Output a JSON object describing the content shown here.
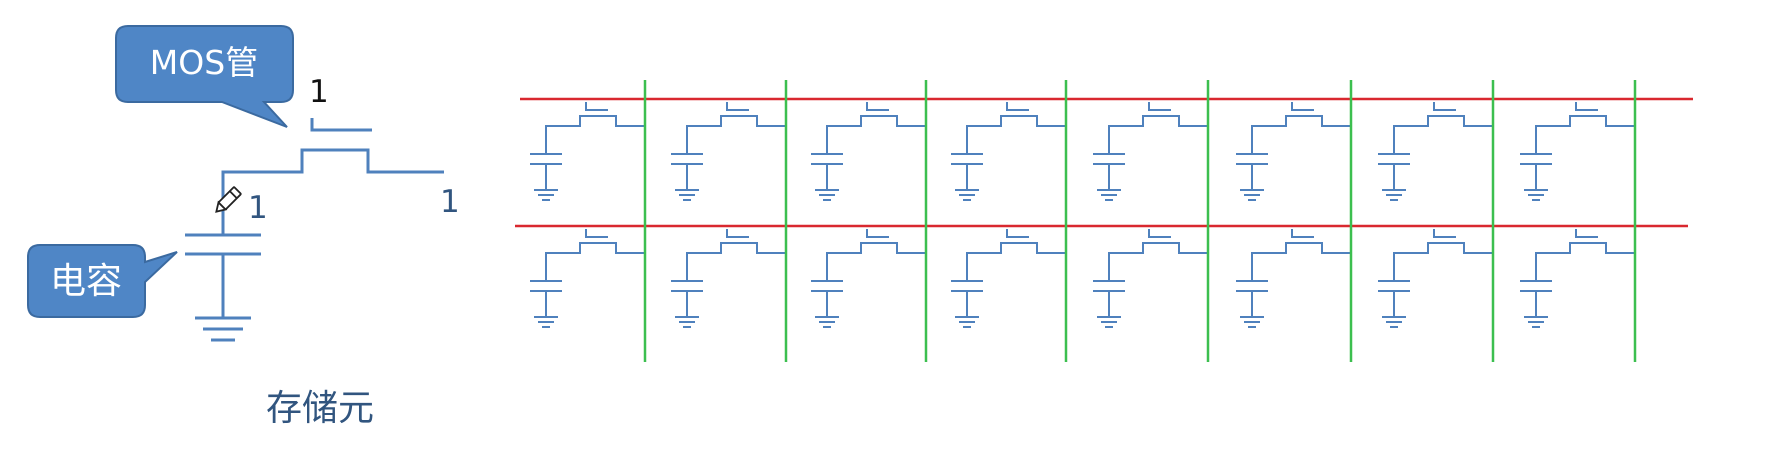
{
  "callouts": {
    "mos": "MOS管",
    "capacitor": "电容"
  },
  "labels": {
    "gate_value": "1",
    "cap_value": "1",
    "bitline_value": "1"
  },
  "caption": "存储元",
  "array": {
    "rows": 2,
    "cols": 8
  },
  "colors": {
    "circuit": "#4f81bd",
    "label_blue": "#31557f",
    "callout_fill": "#4f86c6",
    "callout_stroke": "#3b6aa0",
    "callout_text": "#ffffff",
    "word_line": "#d9282f",
    "bit_line": "#3cbf4f",
    "dark_text": "#111111"
  }
}
